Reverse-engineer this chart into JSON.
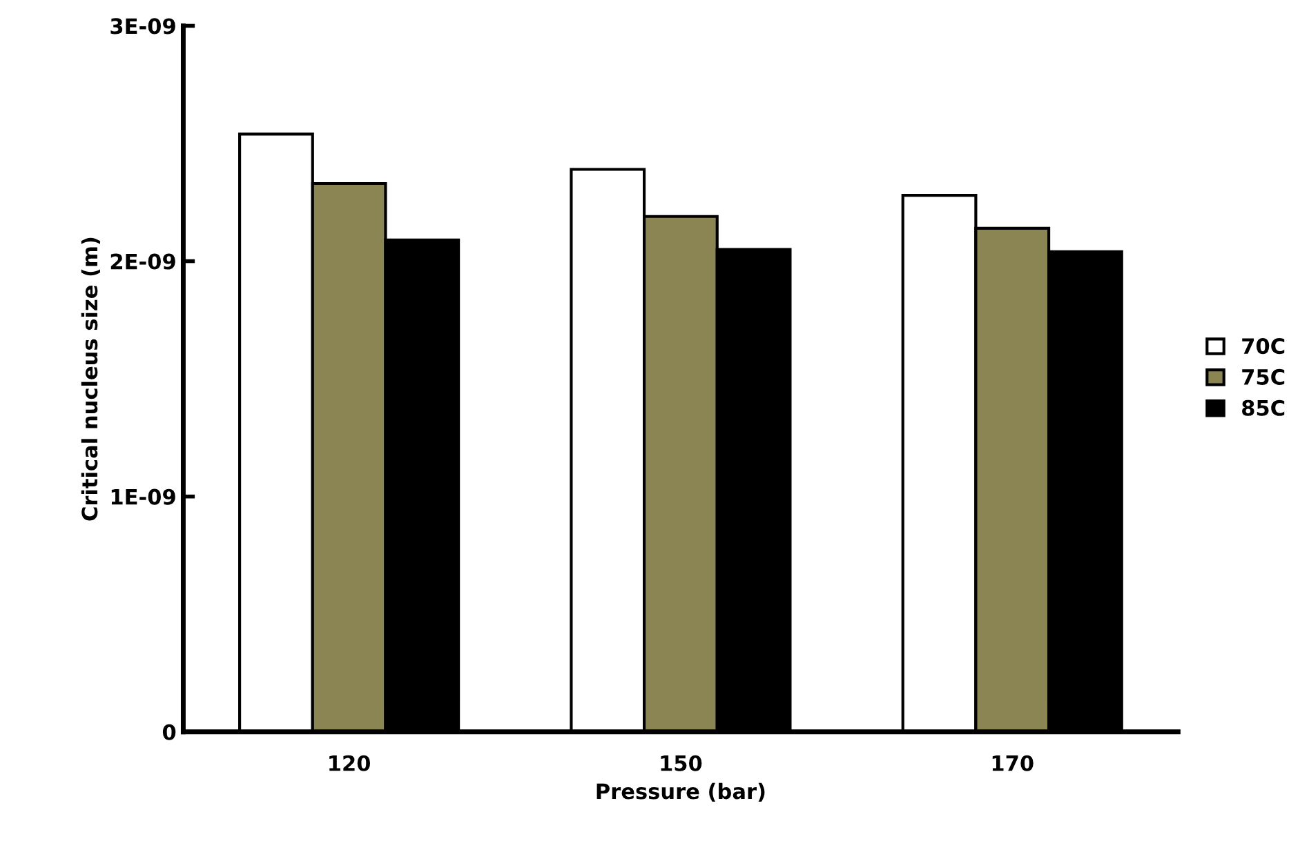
{
  "chart_data": {
    "type": "bar",
    "xlabel": "Pressure (bar)",
    "ylabel": "Critical nucleus size (m)",
    "categories": [
      "120",
      "150",
      "170"
    ],
    "series": [
      {
        "name": "70C",
        "color": "#ffffff",
        "values": [
          2.54e-09,
          2.39e-09,
          2.28e-09
        ]
      },
      {
        "name": "75C",
        "color": "#8b8554",
        "values": [
          2.33e-09,
          2.19e-09,
          2.14e-09
        ]
      },
      {
        "name": "85C",
        "color": "#000000",
        "values": [
          2.09e-09,
          2.05e-09,
          2.04e-09
        ]
      }
    ],
    "ylim": [
      0,
      3e-09
    ],
    "yticks": [
      {
        "value": 0,
        "label": "0"
      },
      {
        "value": 1e-09,
        "label": "1E-09"
      },
      {
        "value": 2e-09,
        "label": "2E-09"
      },
      {
        "value": 3e-09,
        "label": "3E-09"
      }
    ],
    "grid": false,
    "legend": "right"
  }
}
